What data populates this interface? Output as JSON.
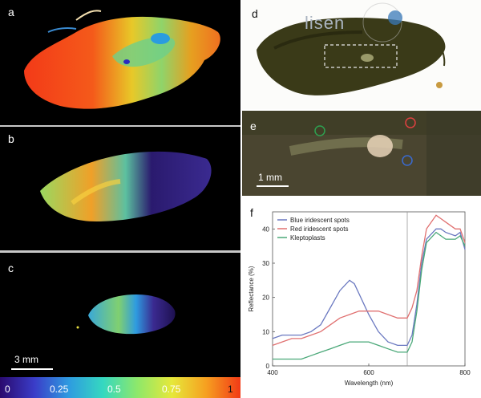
{
  "panels": {
    "a": "a",
    "b": "b",
    "c": "c",
    "d": "d",
    "e": "e",
    "f": "f"
  },
  "scalebars": {
    "left": "3 mm",
    "e": "1 mm"
  },
  "watermark": "lisen",
  "colorbar": {
    "ticks": [
      "0",
      "0.25",
      "0.5",
      "0.75",
      "1"
    ],
    "colors": [
      "#2a0a6e",
      "#3a3cc8",
      "#2e9be0",
      "#35d8c0",
      "#8ee86a",
      "#e6e83a",
      "#f6a020",
      "#f23a16"
    ]
  },
  "chart_data": {
    "type": "line",
    "xlabel": "Wavelength (nm)",
    "ylabel": "Reflectance (%)",
    "xlim": [
      400,
      800
    ],
    "ylim": [
      0,
      45
    ],
    "xticks": [
      "400",
      "600",
      "800"
    ],
    "yticks": [
      "0",
      "10",
      "20",
      "30",
      "40"
    ],
    "vline_x": 680,
    "series": [
      {
        "name": "Blue iridescent spots",
        "color": "#6a78c0",
        "x": [
          400,
          420,
          440,
          460,
          480,
          500,
          520,
          540,
          560,
          570,
          580,
          600,
          620,
          640,
          660,
          680,
          690,
          700,
          710,
          720,
          740,
          750,
          760,
          780,
          790,
          800
        ],
        "y": [
          8,
          9,
          9,
          9,
          10,
          12,
          17,
          22,
          25,
          24,
          21,
          15,
          10,
          7,
          6,
          6,
          9,
          18,
          30,
          37,
          40,
          40,
          39,
          38,
          39,
          34
        ]
      },
      {
        "name": "Red iridescent spots",
        "color": "#e07070",
        "x": [
          400,
          420,
          440,
          460,
          480,
          500,
          520,
          540,
          560,
          580,
          600,
          620,
          640,
          660,
          680,
          690,
          700,
          710,
          720,
          740,
          750,
          760,
          780,
          790,
          800
        ],
        "y": [
          6,
          7,
          8,
          8,
          9,
          10,
          12,
          14,
          15,
          16,
          16,
          16,
          15,
          14,
          14,
          17,
          22,
          32,
          40,
          44,
          43,
          42,
          40,
          40,
          36
        ]
      },
      {
        "name": "Kleptoplasts",
        "color": "#4aa878",
        "x": [
          400,
          420,
          440,
          460,
          480,
          500,
          520,
          540,
          560,
          580,
          600,
          620,
          640,
          660,
          680,
          690,
          700,
          710,
          720,
          740,
          750,
          760,
          780,
          790,
          800
        ],
        "y": [
          2,
          2,
          2,
          2,
          3,
          4,
          5,
          6,
          7,
          7,
          7,
          6,
          5,
          4,
          4,
          7,
          16,
          28,
          36,
          39,
          38,
          37,
          37,
          38,
          35
        ]
      }
    ],
    "legend_position": "top-left"
  }
}
